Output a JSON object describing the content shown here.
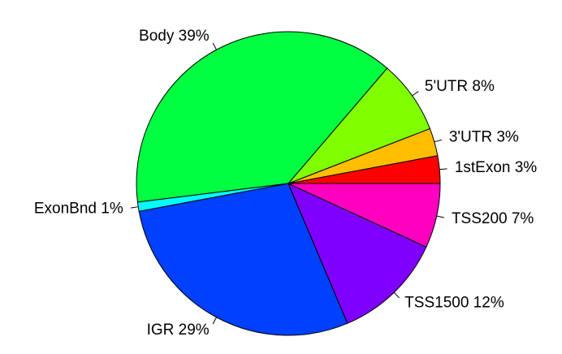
{
  "chart_data": {
    "type": "pie",
    "values": [
      3,
      3,
      8,
      39,
      1,
      29,
      12,
      7
    ],
    "value_labels": [
      "1stExon 3%",
      "3'UTR 3%",
      "5'UTR 8%",
      "Body 39%",
      "ExonBnd 1%",
      "IGR 29%",
      "TSS1500 12%",
      "TSS200 7%"
    ],
    "colors": [
      "#FF0000",
      "#FFBF00",
      "#80FF00",
      "#00FF40",
      "#00FFFF",
      "#0040FF",
      "#8000FF",
      "#FF00BF"
    ],
    "start_angle": 0,
    "direction": "counterclockwise"
  }
}
